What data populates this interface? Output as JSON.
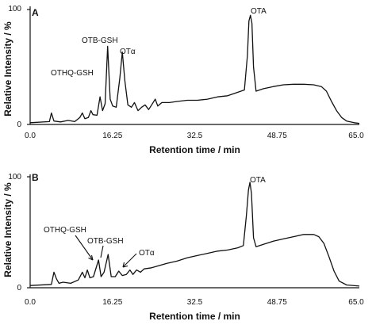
{
  "chart_data": [
    {
      "type": "line",
      "panel_label": "A",
      "xlabel": "Retention time / min",
      "ylabel": "Relative Intensity / %",
      "xlim": [
        0,
        65
      ],
      "ylim": [
        0,
        100
      ],
      "x_ticks": [
        "0.0",
        "16.25",
        "32.5",
        "48.75",
        "65.0"
      ],
      "y_ticks": [
        "0",
        "100"
      ],
      "series": [
        {
          "points": [
            [
              0.0,
              1.5
            ],
            [
              3.8,
              2.5
            ],
            [
              4.2,
              10.0
            ],
            [
              4.7,
              3.0
            ],
            [
              6.0,
              2.2
            ],
            [
              7.5,
              3.5
            ],
            [
              8.8,
              2.5
            ],
            [
              9.8,
              6.0
            ],
            [
              10.3,
              10.0
            ],
            [
              10.8,
              5.0
            ],
            [
              11.5,
              6.0
            ],
            [
              12.0,
              12.0
            ],
            [
              12.4,
              8.5
            ],
            [
              13.2,
              8.0
            ],
            [
              13.8,
              24.0
            ],
            [
              14.3,
              12.0
            ],
            [
              14.8,
              18.0
            ],
            [
              15.3,
              68.0
            ],
            [
              15.8,
              22.0
            ],
            [
              16.3,
              16.0
            ],
            [
              17.0,
              15.0
            ],
            [
              17.7,
              40.0
            ],
            [
              18.2,
              63.0
            ],
            [
              18.7,
              38.0
            ],
            [
              19.3,
              17.0
            ],
            [
              20.0,
              15.0
            ],
            [
              20.6,
              19.0
            ],
            [
              21.3,
              12.0
            ],
            [
              22.0,
              15.0
            ],
            [
              22.7,
              17.0
            ],
            [
              23.4,
              13.0
            ],
            [
              24.0,
              17.0
            ],
            [
              24.7,
              22.0
            ],
            [
              25.2,
              16.0
            ],
            [
              26.0,
              19.0
            ],
            [
              27.5,
              19.0
            ],
            [
              29.0,
              20.0
            ],
            [
              31.0,
              21.0
            ],
            [
              33.0,
              21.0
            ],
            [
              35.0,
              22.0
            ],
            [
              37.0,
              24.0
            ],
            [
              39.0,
              25.0
            ],
            [
              41.0,
              28.0
            ],
            [
              42.3,
              30.0
            ],
            [
              42.9,
              60.0
            ],
            [
              43.2,
              90.0
            ],
            [
              43.5,
              95.0
            ],
            [
              43.8,
              88.0
            ],
            [
              44.1,
              50.0
            ],
            [
              44.6,
              29.0
            ],
            [
              46.0,
              31.0
            ],
            [
              48.0,
              33.0
            ],
            [
              50.0,
              34.5
            ],
            [
              52.0,
              35.0
            ],
            [
              54.0,
              35.0
            ],
            [
              56.0,
              34.5
            ],
            [
              57.5,
              33.0
            ],
            [
              58.5,
              29.0
            ],
            [
              59.5,
              20.0
            ],
            [
              60.5,
              12.0
            ],
            [
              61.5,
              6.0
            ],
            [
              62.5,
              3.0
            ],
            [
              64.0,
              1.5
            ],
            [
              65.0,
              1.0
            ]
          ]
        }
      ],
      "annotations": [
        "OTA",
        "OTB-GSH",
        "OTα",
        "OTHQ-GSH"
      ]
    },
    {
      "type": "line",
      "panel_label": "B",
      "xlabel": "Retention time / min",
      "ylabel": "Relative Intensity / %",
      "xlim": [
        0,
        65
      ],
      "ylim": [
        0,
        100
      ],
      "x_ticks": [
        "0.0",
        "16.25",
        "32.5",
        "48.75",
        "65.0"
      ],
      "y_ticks": [
        "0",
        "100"
      ],
      "series": [
        {
          "points": [
            [
              0.0,
              2.0
            ],
            [
              4.2,
              3.0
            ],
            [
              4.7,
              14.0
            ],
            [
              5.2,
              8.0
            ],
            [
              5.7,
              4.0
            ],
            [
              6.5,
              5.0
            ],
            [
              8.0,
              4.0
            ],
            [
              9.5,
              7.0
            ],
            [
              10.3,
              14.0
            ],
            [
              10.8,
              9.0
            ],
            [
              11.3,
              16.0
            ],
            [
              11.8,
              9.0
            ],
            [
              12.5,
              10.0
            ],
            [
              13.5,
              25.0
            ],
            [
              14.0,
              10.0
            ],
            [
              14.6,
              14.0
            ],
            [
              15.4,
              30.0
            ],
            [
              16.0,
              10.0
            ],
            [
              16.8,
              10.0
            ],
            [
              17.5,
              15.0
            ],
            [
              18.2,
              11.0
            ],
            [
              19.0,
              12.0
            ],
            [
              19.7,
              16.0
            ],
            [
              20.3,
              12.0
            ],
            [
              21.0,
              16.0
            ],
            [
              21.8,
              14.0
            ],
            [
              22.5,
              17.0
            ],
            [
              24.0,
              18.0
            ],
            [
              25.5,
              20.0
            ],
            [
              27.0,
              22.0
            ],
            [
              29.0,
              24.0
            ],
            [
              31.0,
              27.0
            ],
            [
              33.0,
              29.0
            ],
            [
              35.0,
              31.0
            ],
            [
              37.0,
              33.0
            ],
            [
              39.0,
              34.0
            ],
            [
              41.0,
              36.0
            ],
            [
              42.1,
              38.0
            ],
            [
              42.7,
              65.0
            ],
            [
              43.1,
              88.0
            ],
            [
              43.4,
              95.0
            ],
            [
              43.7,
              85.0
            ],
            [
              44.1,
              45.0
            ],
            [
              44.6,
              37.0
            ],
            [
              46.0,
              39.0
            ],
            [
              48.0,
              42.0
            ],
            [
              50.0,
              44.0
            ],
            [
              52.0,
              46.0
            ],
            [
              54.0,
              48.0
            ],
            [
              56.0,
              48.0
            ],
            [
              57.0,
              46.0
            ],
            [
              58.0,
              40.0
            ],
            [
              59.0,
              28.0
            ],
            [
              60.0,
              15.0
            ],
            [
              61.0,
              6.0
            ],
            [
              62.5,
              2.5
            ],
            [
              65.0,
              1.5
            ]
          ]
        }
      ],
      "annotations": [
        "OTA",
        "OTHQ-GSH",
        "OTB-GSH",
        "OTα"
      ]
    }
  ]
}
